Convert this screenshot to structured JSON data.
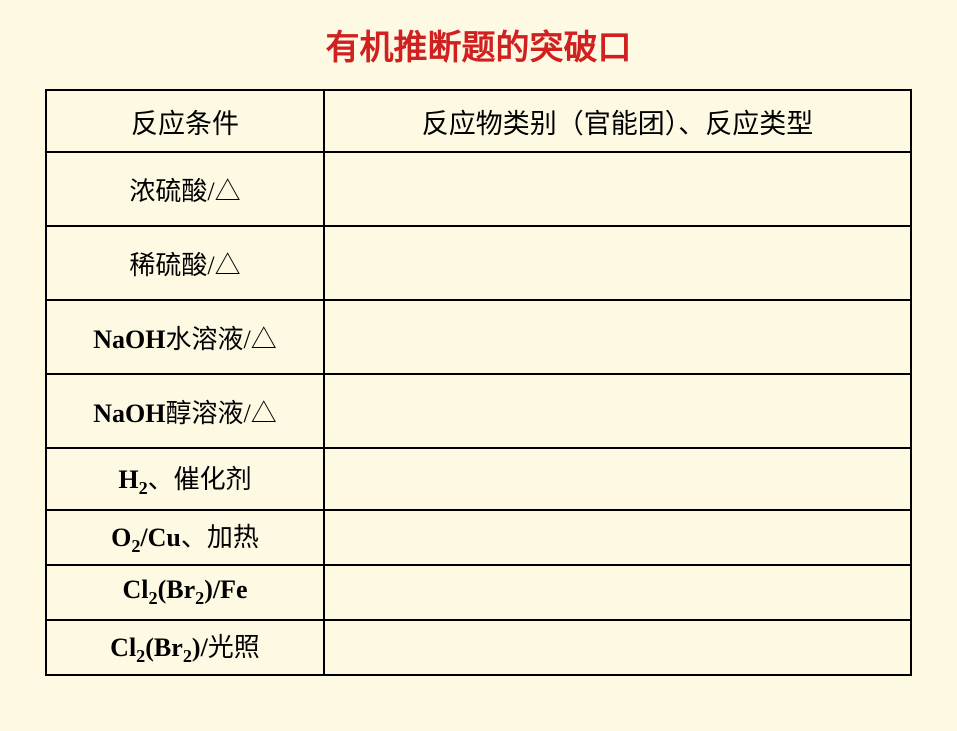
{
  "title": "有机推断题的突破口",
  "table": {
    "headers": {
      "col1": "反应条件",
      "col2": "反应物类别（官能团）、反应类型"
    },
    "rows": [
      {
        "condition_html": "浓硫酸/△",
        "result": ""
      },
      {
        "condition_html": "稀硫酸/△",
        "result": ""
      },
      {
        "condition_html": "NaOH水溶液/△",
        "latin_prefix": "NaOH",
        "cn_suffix": "水溶液/△",
        "result": ""
      },
      {
        "condition_html": "NaOH醇溶液/△",
        "latin_prefix": "NaOH",
        "cn_suffix": "醇溶液/△",
        "result": ""
      },
      {
        "condition_html": "H2、催化剂",
        "result": ""
      },
      {
        "condition_html": "O2/Cu、加热",
        "result": ""
      },
      {
        "condition_html": "Cl2(Br2)/Fe",
        "result": ""
      },
      {
        "condition_html": "Cl2(Br2)/光照",
        "result": ""
      }
    ],
    "row_heights": [
      "row-tall",
      "row-tall",
      "row-tall",
      "row-tall",
      "row-med",
      "row-short",
      "row-short",
      "row-short"
    ],
    "colors": {
      "background": "#fdf9e3",
      "title_color": "#d02020",
      "border_color": "#000000",
      "text_color": "#000000"
    },
    "typography": {
      "title_fontsize": 34,
      "header_fontsize": 27,
      "cell_fontsize": 26
    }
  }
}
